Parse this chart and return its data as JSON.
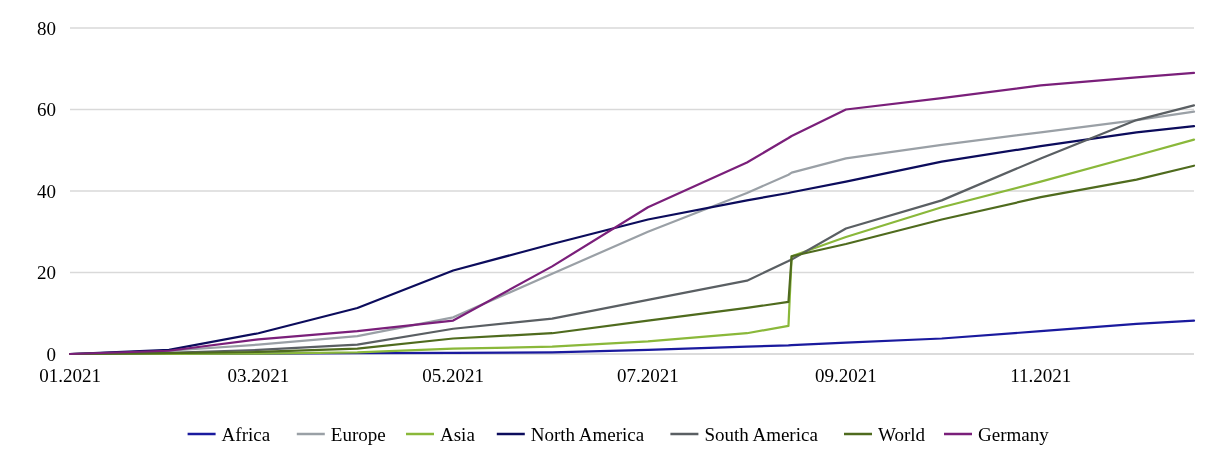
{
  "chart_data": {
    "type": "line",
    "xlim": [
      "2021-01-01",
      "2021-12-19"
    ],
    "xticks": [
      {
        "value": "2021-01-01",
        "label": "01.2021"
      },
      {
        "value": "2021-03-01",
        "label": "03.2021"
      },
      {
        "value": "2021-05-01",
        "label": "05.2021"
      },
      {
        "value": "2021-07-01",
        "label": "07.2021"
      },
      {
        "value": "2021-09-01",
        "label": "09.2021"
      },
      {
        "value": "2021-11-01",
        "label": "11.2021"
      }
    ],
    "ylim": [
      0,
      80
    ],
    "yticks": [
      0,
      20,
      40,
      60,
      80
    ],
    "grid": "y",
    "legend": "bottom",
    "line_style": "solid",
    "marker": "none",
    "x": [
      "2021-01-01",
      "2021-02-01",
      "2021-03-01",
      "2021-04-01",
      "2021-05-01",
      "2021-06-01",
      "2021-07-01",
      "2021-08-01",
      "2021-08-14",
      "2021-08-15",
      "2021-09-01",
      "2021-10-01",
      "2021-11-01",
      "2021-12-01",
      "2021-12-19"
    ],
    "series": [
      {
        "name": "Africa",
        "color": "#1a1a9e",
        "values": [
          0,
          0,
          0.1,
          0.2,
          0.3,
          0.4,
          1,
          1.8,
          2.1,
          2.2,
          2.8,
          3.8,
          5.6,
          7.4,
          8.2
        ]
      },
      {
        "name": "Europe",
        "color": "#9aa0a6",
        "values": [
          0,
          0.8,
          2.3,
          4.4,
          9,
          19.7,
          30,
          39.5,
          44,
          44.5,
          48,
          51.3,
          54.4,
          57.4,
          59.5
        ]
      },
      {
        "name": "Asia",
        "color": "#8ab83a",
        "values": [
          0,
          0,
          0.1,
          0.4,
          1.3,
          1.8,
          3.1,
          5.1,
          6.9,
          24,
          28.7,
          36,
          42.3,
          48.7,
          52.6
        ]
      },
      {
        "name": "North America",
        "color": "#0c0c5c",
        "values": [
          0,
          1,
          5.1,
          11.3,
          20.5,
          27,
          33,
          37.7,
          39.5,
          39.7,
          42.3,
          47.2,
          51,
          54.4,
          55.9
        ]
      },
      {
        "name": "South America",
        "color": "#5a5f63",
        "values": [
          0,
          0.3,
          1,
          2.3,
          6.2,
          8.7,
          13.3,
          18,
          22.8,
          23.2,
          30.8,
          37.7,
          48,
          57.4,
          61
        ]
      },
      {
        "name": "World",
        "color": "#4f6b1e",
        "values": [
          0,
          0.2,
          0.5,
          1.3,
          3.8,
          5.1,
          8.2,
          11.3,
          12.8,
          24,
          27,
          33,
          38.5,
          42.8,
          46.2
        ]
      },
      {
        "name": "Germany",
        "color": "#7a1f7a",
        "values": [
          0,
          0.8,
          3.6,
          5.6,
          8.2,
          21.5,
          36,
          47,
          53,
          53.5,
          60,
          62.8,
          65.9,
          67.9,
          69
        ]
      }
    ]
  }
}
